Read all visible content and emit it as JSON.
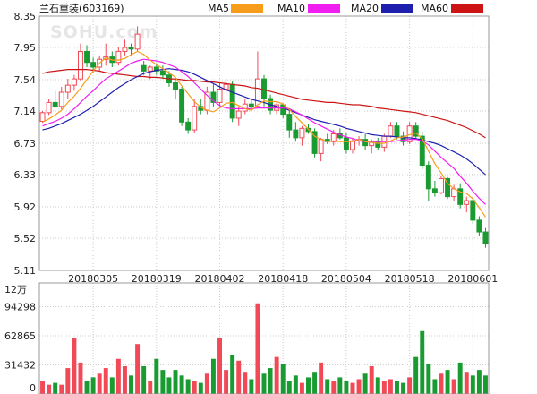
{
  "header": {
    "stock_title": "兰石重装(603169)",
    "watermark": "SOHU.com"
  },
  "colors": {
    "up": "#f24957",
    "down": "#1a9b31",
    "ma5": "#f89c1c",
    "ma10": "#f01ef0",
    "ma20": "#1f1fae",
    "ma60": "#cc1414",
    "grid": "#cccccc"
  },
  "chart_data": [
    {
      "type": "candlestick",
      "title": "兰石重装(603169)",
      "y_ticks": [
        "8.35",
        "7.95",
        "7.54",
        "7.14",
        "6.73",
        "6.33",
        "5.92",
        "5.52",
        "5.11"
      ],
      "ylim": [
        5.11,
        8.35
      ],
      "x_tick_labels": [
        {
          "label": "20180305",
          "index": 8
        },
        {
          "label": "20180319",
          "index": 18
        },
        {
          "label": "20180402",
          "index": 28
        },
        {
          "label": "20180418",
          "index": 38
        },
        {
          "label": "20180504",
          "index": 48
        },
        {
          "label": "20180518",
          "index": 58
        },
        {
          "label": "20180601",
          "index": 68
        }
      ],
      "legend": [
        {
          "name": "MA5",
          "color": "#f89c1c"
        },
        {
          "name": "MA10",
          "color": "#f01ef0"
        },
        {
          "name": "MA20",
          "color": "#1f1fae"
        },
        {
          "name": "MA60",
          "color": "#cc1414"
        }
      ],
      "ohlc": [
        [
          7.01,
          7.14,
          6.99,
          7.12
        ],
        [
          7.12,
          7.29,
          7.09,
          7.25
        ],
        [
          7.25,
          7.4,
          7.18,
          7.2
        ],
        [
          7.2,
          7.45,
          7.16,
          7.38
        ],
        [
          7.38,
          7.55,
          7.3,
          7.47
        ],
        [
          7.47,
          7.6,
          7.4,
          7.55
        ],
        [
          7.55,
          8.0,
          7.52,
          7.9
        ],
        [
          7.9,
          7.98,
          7.7,
          7.76
        ],
        [
          7.76,
          7.82,
          7.62,
          7.7
        ],
        [
          7.7,
          7.85,
          7.64,
          7.8
        ],
        [
          7.8,
          8.0,
          7.72,
          7.83
        ],
        [
          7.83,
          7.9,
          7.7,
          7.76
        ],
        [
          7.76,
          7.95,
          7.72,
          7.9
        ],
        [
          7.9,
          8.05,
          7.85,
          7.95
        ],
        [
          7.95,
          8.0,
          7.85,
          7.93
        ],
        [
          7.93,
          8.22,
          7.9,
          8.12
        ],
        [
          7.72,
          7.78,
          7.6,
          7.65
        ],
        [
          7.65,
          7.72,
          7.55,
          7.7
        ],
        [
          7.7,
          7.75,
          7.6,
          7.65
        ],
        [
          7.65,
          7.72,
          7.55,
          7.6
        ],
        [
          7.6,
          7.65,
          7.45,
          7.5
        ],
        [
          7.5,
          7.55,
          7.3,
          7.42
        ],
        [
          7.42,
          7.45,
          6.95,
          7.0
        ],
        [
          7.0,
          7.05,
          6.85,
          6.9
        ],
        [
          6.9,
          7.3,
          6.86,
          7.2
        ],
        [
          7.2,
          7.3,
          7.1,
          7.15
        ],
        [
          7.15,
          7.45,
          7.1,
          7.38
        ],
        [
          7.38,
          7.48,
          7.2,
          7.25
        ],
        [
          7.25,
          7.5,
          7.2,
          7.42
        ],
        [
          7.42,
          7.55,
          7.35,
          7.48
        ],
        [
          7.48,
          7.52,
          7.0,
          7.05
        ],
        [
          7.05,
          7.2,
          6.95,
          7.14
        ],
        [
          7.14,
          7.3,
          7.1,
          7.23
        ],
        [
          7.23,
          7.28,
          7.15,
          7.2
        ],
        [
          7.2,
          7.9,
          7.18,
          7.55
        ],
        [
          7.55,
          7.6,
          7.2,
          7.3
        ],
        [
          7.3,
          7.35,
          7.1,
          7.15
        ],
        [
          7.15,
          7.25,
          7.1,
          7.22
        ],
        [
          7.22,
          7.24,
          7.05,
          7.1
        ],
        [
          7.1,
          7.15,
          6.8,
          6.9
        ],
        [
          6.9,
          7.0,
          6.75,
          6.8
        ],
        [
          6.8,
          6.95,
          6.7,
          6.92
        ],
        [
          6.92,
          6.98,
          6.85,
          6.88
        ],
        [
          6.88,
          6.92,
          6.55,
          6.6
        ],
        [
          6.6,
          6.8,
          6.5,
          6.78
        ],
        [
          6.78,
          6.85,
          6.72,
          6.75
        ],
        [
          6.75,
          6.9,
          6.7,
          6.85
        ],
        [
          6.85,
          6.92,
          6.78,
          6.8
        ],
        [
          6.8,
          6.86,
          6.6,
          6.65
        ],
        [
          6.65,
          6.8,
          6.6,
          6.76
        ],
        [
          6.76,
          6.82,
          6.7,
          6.78
        ],
        [
          6.78,
          6.85,
          6.65,
          6.7
        ],
        [
          6.7,
          6.78,
          6.6,
          6.75
        ],
        [
          6.75,
          6.8,
          6.65,
          6.68
        ],
        [
          6.68,
          6.85,
          6.62,
          6.82
        ],
        [
          6.82,
          7.0,
          6.8,
          6.95
        ],
        [
          6.95,
          7.0,
          6.78,
          6.82
        ],
        [
          6.82,
          6.88,
          6.7,
          6.75
        ],
        [
          6.75,
          7.0,
          6.72,
          6.95
        ],
        [
          6.95,
          7.0,
          6.78,
          6.82
        ],
        [
          6.82,
          6.88,
          6.4,
          6.45
        ],
        [
          6.45,
          6.5,
          6.0,
          6.15
        ],
        [
          6.15,
          6.25,
          6.05,
          6.1
        ],
        [
          6.1,
          6.32,
          6.08,
          6.28
        ],
        [
          6.28,
          6.3,
          6.02,
          6.05
        ],
        [
          6.05,
          6.2,
          6.0,
          6.15
        ],
        [
          6.15,
          6.22,
          5.9,
          5.95
        ],
        [
          5.95,
          6.05,
          5.85,
          6.0
        ],
        [
          6.0,
          6.05,
          5.7,
          5.75
        ],
        [
          5.75,
          5.8,
          5.55,
          5.6
        ],
        [
          5.6,
          5.65,
          5.4,
          5.45
        ]
      ],
      "ma5": [
        7.0,
        7.04,
        7.09,
        7.15,
        7.25,
        7.33,
        7.43,
        7.54,
        7.65,
        7.75,
        7.82,
        7.79,
        7.79,
        7.81,
        7.86,
        7.9,
        7.86,
        7.79,
        7.73,
        7.68,
        7.63,
        7.57,
        7.46,
        7.36,
        7.26,
        7.19,
        7.15,
        7.13,
        7.18,
        7.24,
        7.25,
        7.21,
        7.17,
        7.15,
        7.22,
        7.27,
        7.26,
        7.26,
        7.23,
        7.16,
        7.07,
        6.99,
        6.91,
        6.82,
        6.78,
        6.75,
        6.76,
        6.75,
        6.75,
        6.75,
        6.78,
        6.75,
        6.74,
        6.73,
        6.73,
        6.76,
        6.8,
        6.81,
        6.84,
        6.86,
        6.79,
        6.63,
        6.47,
        6.35,
        6.22,
        6.15,
        6.11,
        6.09,
        6.02,
        5.91,
        5.79
      ],
      "ma10": [
        6.95,
        6.98,
        7.01,
        7.05,
        7.1,
        7.17,
        7.25,
        7.33,
        7.4,
        7.48,
        7.55,
        7.6,
        7.65,
        7.7,
        7.75,
        7.78,
        7.8,
        7.79,
        7.78,
        7.76,
        7.73,
        7.7,
        7.64,
        7.58,
        7.5,
        7.42,
        7.34,
        7.27,
        7.21,
        7.18,
        7.17,
        7.17,
        7.17,
        7.17,
        7.18,
        7.18,
        7.18,
        7.18,
        7.18,
        7.17,
        7.13,
        7.09,
        7.04,
        6.99,
        6.95,
        6.91,
        6.87,
        6.84,
        6.81,
        6.79,
        6.76,
        6.75,
        6.75,
        6.75,
        6.75,
        6.75,
        6.76,
        6.77,
        6.78,
        6.78,
        6.76,
        6.71,
        6.63,
        6.55,
        6.48,
        6.41,
        6.31,
        6.22,
        6.12,
        6.03,
        5.95
      ],
      "ma20": [
        6.9,
        6.92,
        6.95,
        6.98,
        7.02,
        7.06,
        7.1,
        7.15,
        7.2,
        7.26,
        7.32,
        7.38,
        7.44,
        7.49,
        7.54,
        7.58,
        7.62,
        7.64,
        7.66,
        7.67,
        7.68,
        7.67,
        7.66,
        7.64,
        7.61,
        7.57,
        7.53,
        7.49,
        7.45,
        7.41,
        7.38,
        7.35,
        7.32,
        7.29,
        7.27,
        7.25,
        7.22,
        7.2,
        7.18,
        7.15,
        7.12,
        7.09,
        7.06,
        7.03,
        7.01,
        6.99,
        6.97,
        6.95,
        6.92,
        6.9,
        6.88,
        6.86,
        6.84,
        6.83,
        6.82,
        6.82,
        6.81,
        6.8,
        6.8,
        6.79,
        6.77,
        6.75,
        6.73,
        6.7,
        6.66,
        6.62,
        6.58,
        6.53,
        6.47,
        6.4,
        6.33
      ],
      "ma60": [
        7.62,
        7.64,
        7.65,
        7.66,
        7.67,
        7.67,
        7.67,
        7.67,
        7.66,
        7.65,
        7.63,
        7.62,
        7.61,
        7.6,
        7.59,
        7.58,
        7.58,
        7.57,
        7.57,
        7.56,
        7.55,
        7.55,
        7.54,
        7.53,
        7.53,
        7.52,
        7.51,
        7.51,
        7.5,
        7.49,
        7.48,
        7.47,
        7.46,
        7.44,
        7.43,
        7.41,
        7.39,
        7.37,
        7.35,
        7.33,
        7.31,
        7.29,
        7.28,
        7.27,
        7.26,
        7.25,
        7.25,
        7.24,
        7.23,
        7.22,
        7.22,
        7.21,
        7.2,
        7.18,
        7.17,
        7.16,
        7.15,
        7.14,
        7.13,
        7.12,
        7.1,
        7.08,
        7.06,
        7.04,
        7.02,
        6.99,
        6.96,
        6.93,
        6.89,
        6.85,
        6.8
      ]
    },
    {
      "type": "bar",
      "title": "volume",
      "unit_label": "12万",
      "y_ticks": [
        "94298",
        "62865",
        "31432",
        "0"
      ],
      "ylim": [
        0,
        120000
      ],
      "values": [
        14000,
        10000,
        12000,
        10000,
        28000,
        60000,
        34000,
        14000,
        18000,
        22000,
        28000,
        18000,
        38000,
        30000,
        20000,
        54000,
        30000,
        14000,
        38000,
        26000,
        18000,
        26000,
        20000,
        16000,
        14000,
        12000,
        22000,
        38000,
        60000,
        26000,
        42000,
        36000,
        24000,
        16000,
        98000,
        22000,
        28000,
        40000,
        32000,
        14000,
        20000,
        12000,
        18000,
        24000,
        34000,
        16000,
        14000,
        18000,
        14000,
        12000,
        16000,
        22000,
        30000,
        18000,
        14000,
        16000,
        14000,
        12000,
        18000,
        40000,
        68000,
        32000,
        16000,
        22000,
        26000,
        16000,
        34000,
        24000,
        20000,
        26000,
        20000
      ]
    }
  ]
}
